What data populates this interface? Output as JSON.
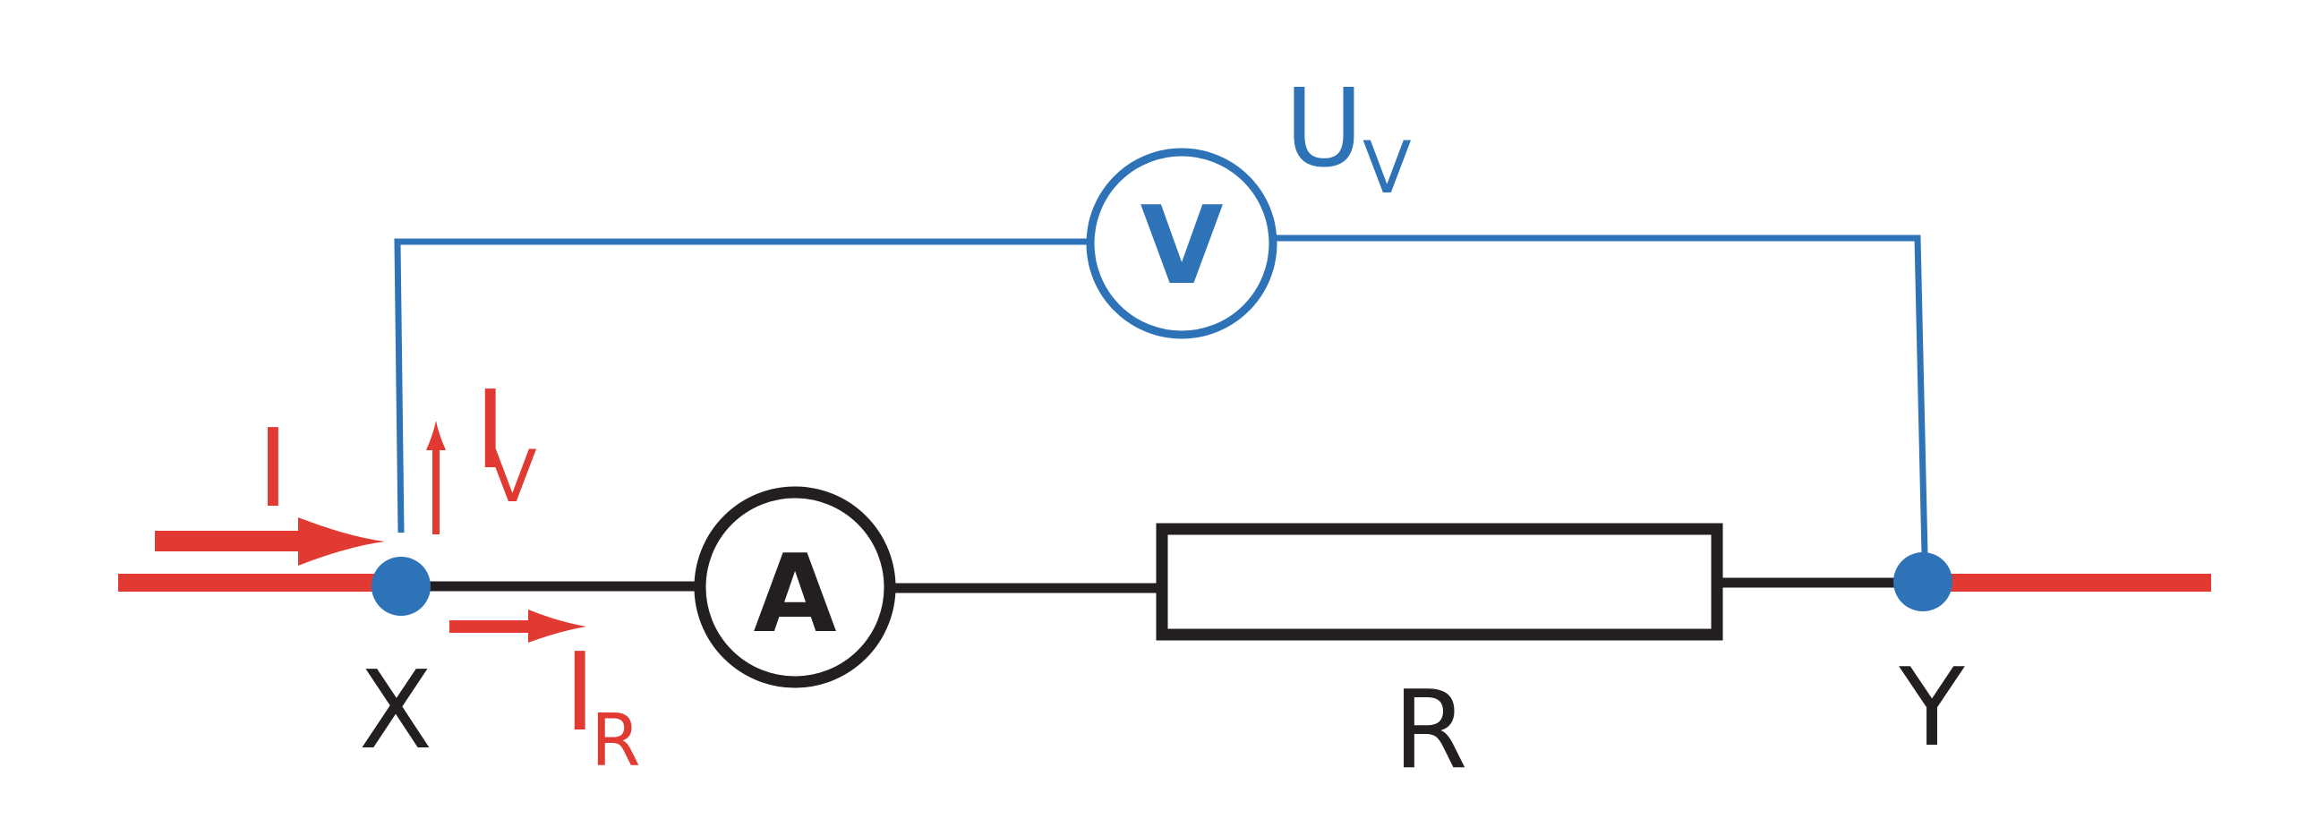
{
  "colors": {
    "circuit_line": "#231f20",
    "current_red": "#e03a33",
    "voltmeter_blue": "#2e73b8",
    "background": "#ffffff"
  },
  "nodes": {
    "left_label": "X",
    "right_label": "Y"
  },
  "currents": {
    "total": {
      "symbol": "I",
      "subscript": ""
    },
    "voltmeter_branch": {
      "symbol": "I",
      "subscript": "V"
    },
    "resistor_branch": {
      "symbol": "I",
      "subscript": "R"
    }
  },
  "voltage": {
    "symbol": "U",
    "subscript": "V"
  },
  "components": {
    "ammeter_symbol": "A",
    "voltmeter_symbol": "V",
    "resistor_label": "R"
  }
}
